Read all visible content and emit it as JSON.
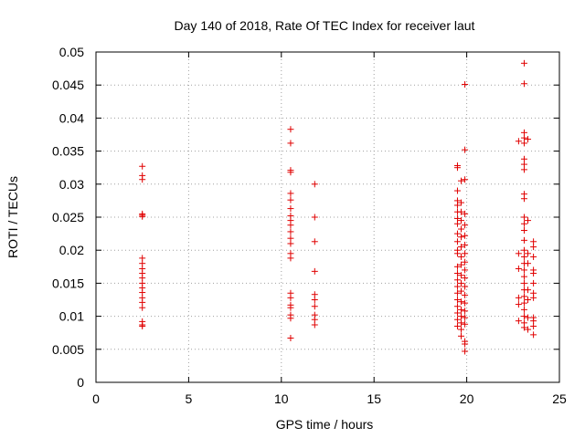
{
  "chart_data": {
    "type": "scatter",
    "title": "Day 140 of 2018, Rate Of TEC Index for receiver laut",
    "xlabel": "GPS time / hours",
    "ylabel": "ROTI / TECUs",
    "xlim": [
      0,
      25
    ],
    "ylim": [
      0,
      0.05
    ],
    "x_ticks": [
      "0",
      "5",
      "10",
      "15",
      "20",
      "25"
    ],
    "y_ticks": [
      "0",
      "0.005",
      "0.01",
      "0.015",
      "0.02",
      "0.025",
      "0.03",
      "0.035",
      "0.04",
      "0.045",
      "0.05"
    ],
    "grid": true,
    "marker": "+",
    "color": "#e00000",
    "points": [
      [
        2.5,
        0.0327
      ],
      [
        2.5,
        0.0313
      ],
      [
        2.5,
        0.0307
      ],
      [
        2.5,
        0.0255
      ],
      [
        2.5,
        0.0253
      ],
      [
        2.5,
        0.0251
      ],
      [
        2.5,
        0.0188
      ],
      [
        2.5,
        0.018
      ],
      [
        2.5,
        0.0172
      ],
      [
        2.5,
        0.0165
      ],
      [
        2.5,
        0.0158
      ],
      [
        2.5,
        0.015
      ],
      [
        2.5,
        0.0143
      ],
      [
        2.5,
        0.0136
      ],
      [
        2.5,
        0.0128
      ],
      [
        2.5,
        0.0121
      ],
      [
        2.5,
        0.0113
      ],
      [
        2.5,
        0.0092
      ],
      [
        2.5,
        0.0087
      ],
      [
        2.5,
        0.0085
      ],
      [
        10.5,
        0.0383
      ],
      [
        10.5,
        0.0362
      ],
      [
        10.5,
        0.0321
      ],
      [
        10.5,
        0.0318
      ],
      [
        10.5,
        0.0286
      ],
      [
        10.5,
        0.0276
      ],
      [
        10.5,
        0.0263
      ],
      [
        10.5,
        0.0252
      ],
      [
        10.5,
        0.0245
      ],
      [
        10.5,
        0.0238
      ],
      [
        10.5,
        0.0228
      ],
      [
        10.5,
        0.0218
      ],
      [
        10.5,
        0.021
      ],
      [
        10.5,
        0.0195
      ],
      [
        10.5,
        0.0188
      ],
      [
        10.5,
        0.0135
      ],
      [
        10.5,
        0.0128
      ],
      [
        10.5,
        0.0117
      ],
      [
        10.5,
        0.0113
      ],
      [
        10.5,
        0.0102
      ],
      [
        10.5,
        0.0097
      ],
      [
        10.5,
        0.0067
      ],
      [
        11.8,
        0.03
      ],
      [
        11.8,
        0.025
      ],
      [
        11.8,
        0.0213
      ],
      [
        11.8,
        0.0168
      ],
      [
        11.8,
        0.0133
      ],
      [
        11.8,
        0.0125
      ],
      [
        11.8,
        0.0115
      ],
      [
        11.8,
        0.0102
      ],
      [
        11.8,
        0.0095
      ],
      [
        11.8,
        0.0087
      ],
      [
        19.5,
        0.0328
      ],
      [
        19.5,
        0.0325
      ],
      [
        19.5,
        0.029
      ],
      [
        19.5,
        0.0275
      ],
      [
        19.5,
        0.0268
      ],
      [
        19.5,
        0.0258
      ],
      [
        19.5,
        0.0248
      ],
      [
        19.5,
        0.024
      ],
      [
        19.5,
        0.0225
      ],
      [
        19.5,
        0.0213
      ],
      [
        19.5,
        0.02
      ],
      [
        19.5,
        0.0195
      ],
      [
        19.5,
        0.0175
      ],
      [
        19.5,
        0.0165
      ],
      [
        19.5,
        0.0155
      ],
      [
        19.5,
        0.0145
      ],
      [
        19.5,
        0.0135
      ],
      [
        19.5,
        0.0125
      ],
      [
        19.5,
        0.0115
      ],
      [
        19.5,
        0.0105
      ],
      [
        19.5,
        0.0095
      ],
      [
        19.5,
        0.0085
      ],
      [
        19.7,
        0.0305
      ],
      [
        19.7,
        0.0272
      ],
      [
        19.7,
        0.0258
      ],
      [
        19.7,
        0.0245
      ],
      [
        19.7,
        0.0232
      ],
      [
        19.7,
        0.022
      ],
      [
        19.7,
        0.0205
      ],
      [
        19.7,
        0.019
      ],
      [
        19.7,
        0.0178
      ],
      [
        19.7,
        0.0162
      ],
      [
        19.7,
        0.015
      ],
      [
        19.7,
        0.0138
      ],
      [
        19.7,
        0.0122
      ],
      [
        19.7,
        0.011
      ],
      [
        19.7,
        0.01
      ],
      [
        19.7,
        0.009
      ],
      [
        19.7,
        0.008
      ],
      [
        19.7,
        0.007
      ],
      [
        19.9,
        0.0451
      ],
      [
        19.9,
        0.0352
      ],
      [
        19.9,
        0.0307
      ],
      [
        19.9,
        0.0255
      ],
      [
        19.9,
        0.0238
      ],
      [
        19.9,
        0.0222
      ],
      [
        19.9,
        0.0208
      ],
      [
        19.9,
        0.0195
      ],
      [
        19.9,
        0.0182
      ],
      [
        19.9,
        0.017
      ],
      [
        19.9,
        0.0158
      ],
      [
        19.9,
        0.0145
      ],
      [
        19.9,
        0.0132
      ],
      [
        19.9,
        0.012
      ],
      [
        19.9,
        0.0108
      ],
      [
        19.9,
        0.0098
      ],
      [
        19.9,
        0.0088
      ],
      [
        19.9,
        0.0062
      ],
      [
        19.9,
        0.0058
      ],
      [
        19.9,
        0.0047
      ],
      [
        22.8,
        0.0365
      ],
      [
        22.8,
        0.0195
      ],
      [
        22.8,
        0.0172
      ],
      [
        22.8,
        0.0128
      ],
      [
        22.8,
        0.0118
      ],
      [
        22.8,
        0.0093
      ],
      [
        23.1,
        0.0483
      ],
      [
        23.1,
        0.0452
      ],
      [
        23.1,
        0.0378
      ],
      [
        23.1,
        0.037
      ],
      [
        23.1,
        0.0362
      ],
      [
        23.1,
        0.0338
      ],
      [
        23.1,
        0.033
      ],
      [
        23.1,
        0.0322
      ],
      [
        23.1,
        0.0285
      ],
      [
        23.1,
        0.0278
      ],
      [
        23.1,
        0.025
      ],
      [
        23.1,
        0.024
      ],
      [
        23.1,
        0.023
      ],
      [
        23.1,
        0.0215
      ],
      [
        23.1,
        0.02
      ],
      [
        23.1,
        0.019
      ],
      [
        23.1,
        0.018
      ],
      [
        23.1,
        0.017
      ],
      [
        23.1,
        0.016
      ],
      [
        23.1,
        0.015
      ],
      [
        23.1,
        0.014
      ],
      [
        23.1,
        0.013
      ],
      [
        23.1,
        0.012
      ],
      [
        23.1,
        0.011
      ],
      [
        23.1,
        0.01
      ],
      [
        23.1,
        0.009
      ],
      [
        23.1,
        0.0083
      ],
      [
        23.3,
        0.0368
      ],
      [
        23.3,
        0.0245
      ],
      [
        23.3,
        0.0195
      ],
      [
        23.3,
        0.018
      ],
      [
        23.3,
        0.014
      ],
      [
        23.3,
        0.0125
      ],
      [
        23.3,
        0.0098
      ],
      [
        23.3,
        0.008
      ],
      [
        23.6,
        0.0213
      ],
      [
        23.6,
        0.0205
      ],
      [
        23.6,
        0.019
      ],
      [
        23.6,
        0.017
      ],
      [
        23.6,
        0.0165
      ],
      [
        23.6,
        0.015
      ],
      [
        23.6,
        0.0135
      ],
      [
        23.6,
        0.0128
      ],
      [
        23.6,
        0.0098
      ],
      [
        23.6,
        0.0093
      ],
      [
        23.6,
        0.0085
      ],
      [
        23.6,
        0.0072
      ]
    ]
  }
}
